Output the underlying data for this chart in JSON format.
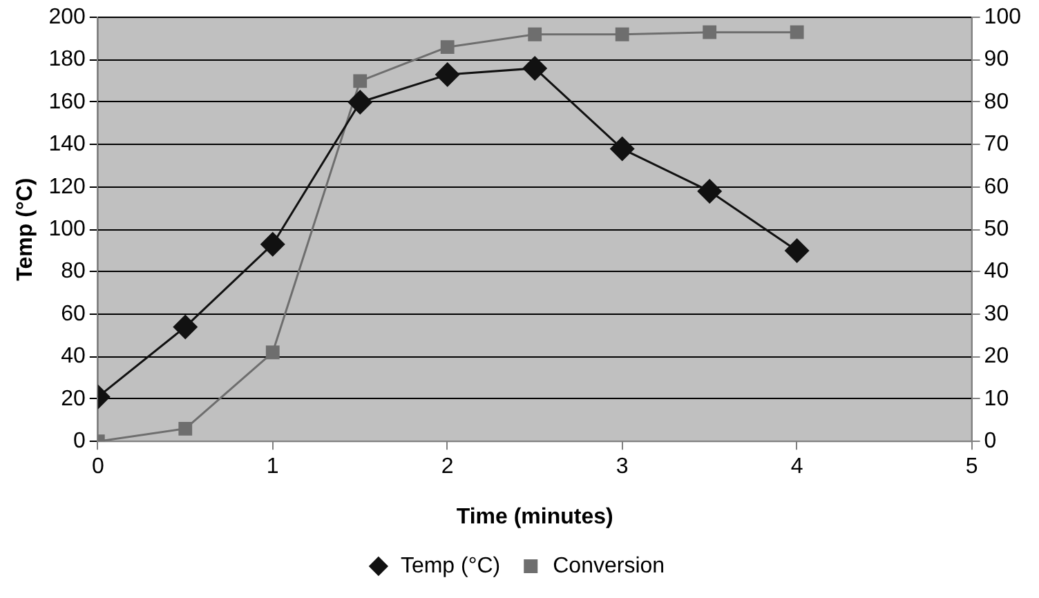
{
  "chart_data": {
    "type": "line",
    "xlabel": "Time (minutes)",
    "ylabel": "Temp (°C)",
    "x": [
      0,
      0.5,
      1,
      1.5,
      2,
      2.5,
      3,
      3.5,
      4
    ],
    "series": [
      {
        "name": "Temp (°C)",
        "color": "#111111",
        "marker": "diamond",
        "values": [
          21,
          54,
          93,
          160,
          173,
          176,
          138,
          118,
          90
        ]
      },
      {
        "name": "Conversion",
        "color": "#6e6e6e",
        "marker": "square",
        "axis": "y2",
        "values": [
          0,
          3,
          21,
          85,
          93,
          96,
          96,
          96.5,
          96.5
        ]
      }
    ],
    "xlim": [
      0,
      5
    ],
    "xticks": [
      0,
      1,
      2,
      3,
      4,
      5
    ],
    "ylim": [
      0,
      200
    ],
    "yticks": [
      0,
      20,
      40,
      60,
      80,
      100,
      120,
      140,
      160,
      180,
      200
    ],
    "y2lim": [
      0,
      100
    ],
    "y2ticks": [
      0,
      10,
      20,
      30,
      40,
      50,
      60,
      70,
      80,
      90,
      100
    ],
    "grid": "y",
    "legend": "bottom",
    "line_style": "solid"
  }
}
